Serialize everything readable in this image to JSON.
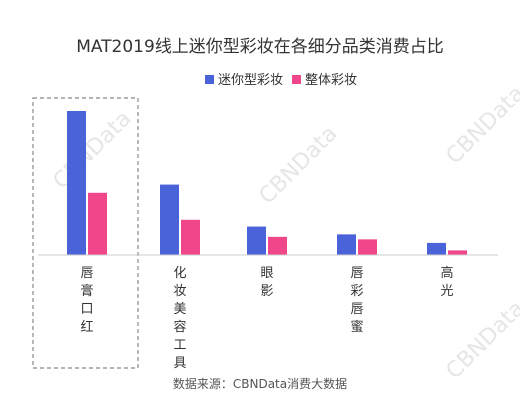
{
  "chart_data": {
    "type": "bar",
    "title": "MAT2019线上迷你型彩妆在各细分品类消费占比",
    "categories": [
      "唇膏口红",
      "化妆美容工具",
      "眼影",
      "唇彩唇蜜",
      "高光"
    ],
    "series": [
      {
        "name": "迷你型彩妆",
        "values": [
          40.5,
          19.8,
          8.0,
          5.8,
          3.4
        ]
      },
      {
        "name": "整体彩妆",
        "values": [
          17.5,
          9.9,
          5.1,
          4.4,
          1.3
        ]
      }
    ],
    "xlabel": "",
    "ylabel": "",
    "ylim": [
      0,
      45
    ],
    "grid": false,
    "legend": "top-right",
    "highlight_category": "唇膏口红"
  },
  "colors": {
    "series1": "#4a63d9",
    "series2": "#f0478b",
    "baseline": "#cccccc",
    "highlight_border": "#888888"
  },
  "source": "数据来源：CBNData消费大数据",
  "watermark": "CBNData"
}
